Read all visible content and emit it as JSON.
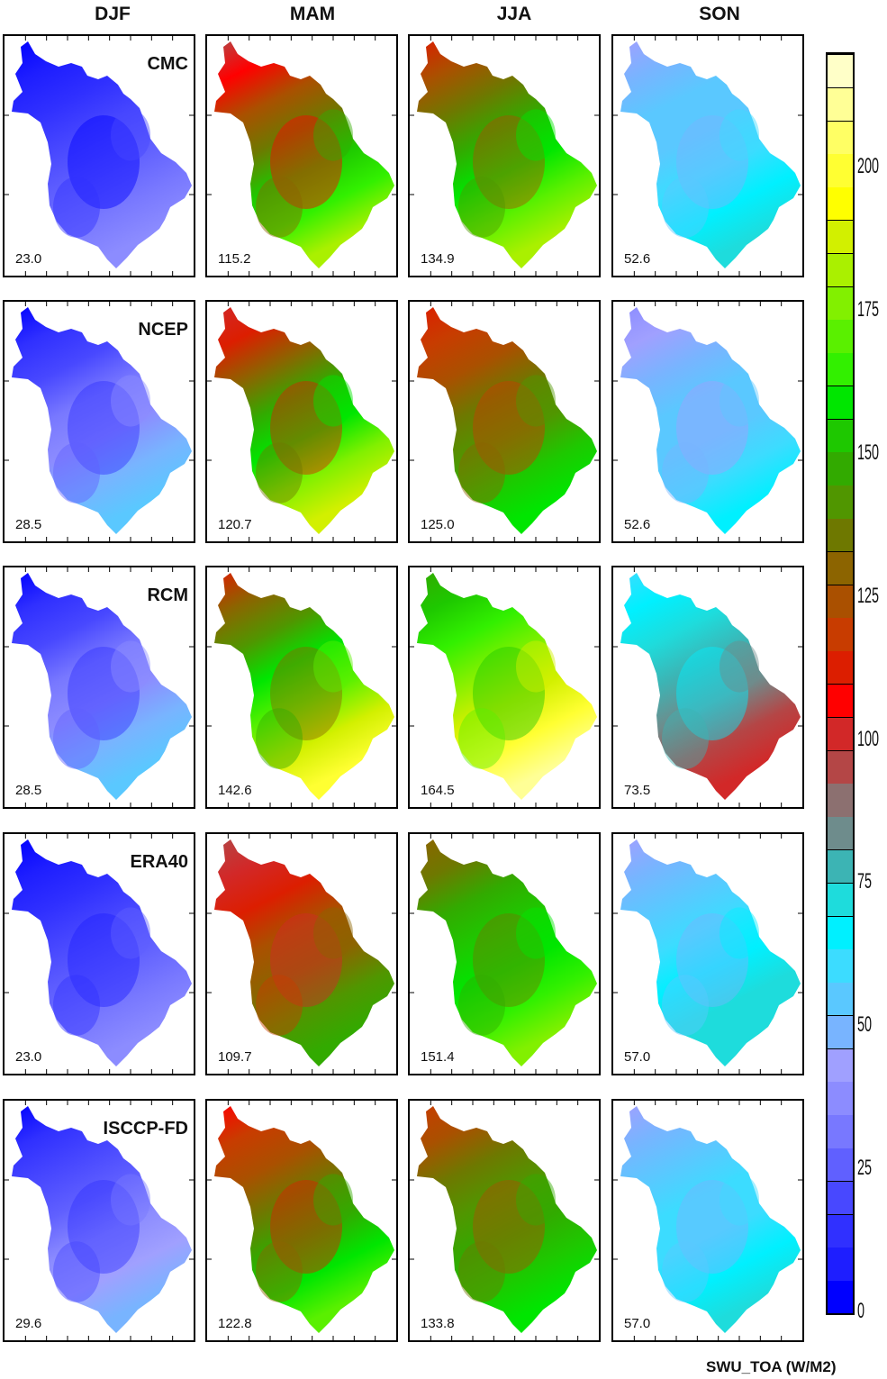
{
  "columns": [
    "DJF",
    "MAM",
    "JJA",
    "SON"
  ],
  "rows": [
    {
      "label": "CMC",
      "values": [
        "23.0",
        "115.2",
        "134.9",
        "52.6"
      ]
    },
    {
      "label": "NCEP",
      "values": [
        "28.5",
        "120.7",
        "125.0",
        "52.6"
      ]
    },
    {
      "label": "RCM",
      "values": [
        "28.5",
        "142.6",
        "164.5",
        "73.5"
      ]
    },
    {
      "label": "ERA40",
      "values": [
        "23.0",
        "109.7",
        "151.4",
        "57.0"
      ]
    },
    {
      "label": "ISCCP-FD",
      "values": [
        "29.6",
        "122.8",
        "133.8",
        "57.0"
      ]
    }
  ],
  "colorbar": {
    "min": 0,
    "max": 220,
    "tick_labels": [
      "0",
      "25",
      "50",
      "75",
      "100",
      "125",
      "150",
      "175",
      "200"
    ],
    "units_label": "SWU_TOA (W/M2)",
    "colors": [
      "#0000ff",
      "#1e1eff",
      "#3030ff",
      "#4848ff",
      "#6060ff",
      "#7878ff",
      "#8c8cff",
      "#a0a0ff",
      "#78b4ff",
      "#5ac8ff",
      "#3cdcff",
      "#00f0ff",
      "#1edcdc",
      "#3cb4b4",
      "#6e8c8c",
      "#8c7070",
      "#b44646",
      "#d22828",
      "#ff0000",
      "#dc1e00",
      "#c83c00",
      "#aa5000",
      "#8c6400",
      "#6e7800",
      "#509600",
      "#32aa00",
      "#1ec800",
      "#00e600",
      "#32f000",
      "#5af000",
      "#82f000",
      "#aaf000",
      "#d2f000",
      "#ffff00",
      "#ffff32",
      "#ffff64",
      "#ffff96",
      "#ffffc8"
    ]
  },
  "fields": {
    "DJF": [
      {
        "min": 0,
        "max": 35
      },
      {
        "min": 5,
        "max": 55
      },
      {
        "min": 5,
        "max": 55
      },
      {
        "min": 0,
        "max": 40
      },
      {
        "min": 5,
        "max": 50
      }
    ],
    "MAM": [
      {
        "min": 95,
        "max": 180
      },
      {
        "min": 100,
        "max": 190
      },
      {
        "min": 115,
        "max": 200
      },
      {
        "min": 95,
        "max": 150
      },
      {
        "min": 105,
        "max": 170
      }
    ],
    "JJA": [
      {
        "min": 115,
        "max": 180
      },
      {
        "min": 110,
        "max": 160
      },
      {
        "min": 145,
        "max": 210
      },
      {
        "min": 130,
        "max": 175
      },
      {
        "min": 120,
        "max": 160
      }
    ],
    "SON": [
      {
        "min": 45,
        "max": 70
      },
      {
        "min": 40,
        "max": 65
      },
      {
        "min": 60,
        "max": 100
      },
      {
        "min": 45,
        "max": 75
      },
      {
        "min": 45,
        "max": 72
      }
    ]
  }
}
